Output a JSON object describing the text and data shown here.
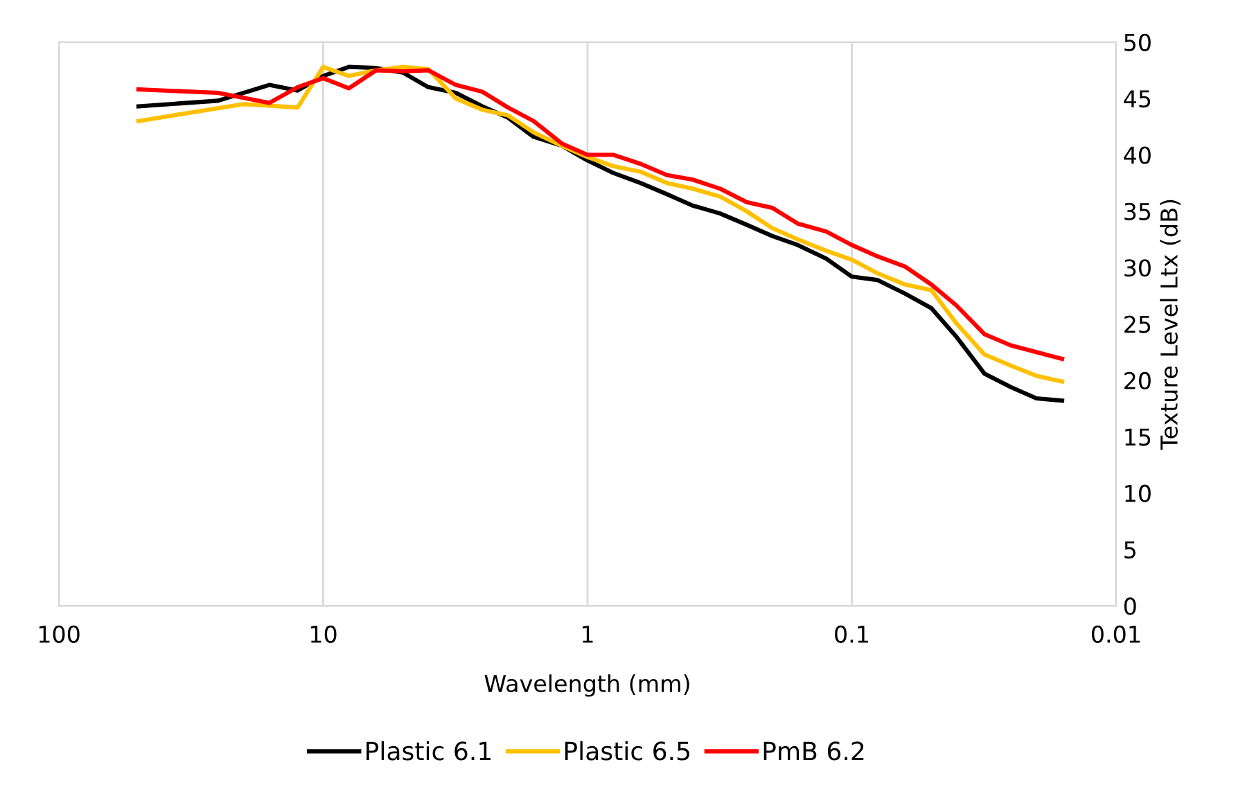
{
  "chart_data": {
    "type": "line",
    "xlabel": "Wavelength (mm)",
    "y2label": "Texture Level Ltx (dB)",
    "log": "x",
    "xlim": [
      100,
      0.01
    ],
    "xticks": [
      100,
      10,
      1,
      0.1,
      0.01
    ],
    "y2lim": [
      0,
      50
    ],
    "y2ticks": [
      0,
      5,
      10,
      15,
      20,
      25,
      30,
      35,
      40,
      45,
      50
    ],
    "grid": "x",
    "legend": "bottom",
    "marker": "none",
    "line_style": "solid",
    "series": [
      {
        "name": "Plastic 6.1",
        "color": "#000000",
        "axis": "y2",
        "x": [
          50,
          25,
          16,
          12.5,
          10,
          8,
          6.3,
          5,
          4,
          3.15,
          2.5,
          2,
          1.6,
          1.25,
          1,
          0.8,
          0.63,
          0.5,
          0.4,
          0.315,
          0.25,
          0.2,
          0.16,
          0.125,
          0.1,
          0.08,
          0.063,
          0.05,
          0.04,
          0.0315,
          0.025,
          0.02,
          0.016
        ],
        "values": [
          44.3,
          44.8,
          46.2,
          45.7,
          47,
          47.8,
          47.7,
          47.3,
          46,
          45.5,
          44.3,
          43.3,
          41.6,
          40.8,
          39.5,
          38.4,
          37.5,
          36.5,
          35.5,
          34.8,
          33.8,
          32.8,
          32,
          30.8,
          29.2,
          28.9,
          27.7,
          26.4,
          23.8,
          20.6,
          19.4,
          18.4,
          18.2
        ]
      },
      {
        "name": "Plastic 6.5",
        "color": "#ffc000",
        "axis": "y2",
        "x": [
          50,
          20,
          12.5,
          10,
          8,
          6.3,
          5,
          4,
          3.15,
          2.5,
          2,
          1.6,
          1.25,
          1,
          0.8,
          0.63,
          0.5,
          0.4,
          0.315,
          0.25,
          0.2,
          0.16,
          0.125,
          0.1,
          0.08,
          0.063,
          0.05,
          0.04,
          0.0315,
          0.025,
          0.02,
          0.016
        ],
        "values": [
          43,
          44.5,
          44.2,
          47.8,
          47,
          47.5,
          47.8,
          47.6,
          45,
          44,
          43.5,
          42,
          40.8,
          39.8,
          39,
          38.5,
          37.5,
          37,
          36.3,
          35,
          33.5,
          32.5,
          31.5,
          30.7,
          29.5,
          28.5,
          28,
          25,
          22.3,
          21.3,
          20.4,
          19.9
        ]
      },
      {
        "name": "PmB 6.2",
        "color": "#ff0000",
        "axis": "y2",
        "x": [
          50,
          25,
          16,
          12.5,
          10,
          8,
          6.3,
          5,
          4,
          3.15,
          2.5,
          2,
          1.6,
          1.25,
          1,
          0.8,
          0.63,
          0.5,
          0.4,
          0.315,
          0.25,
          0.2,
          0.16,
          0.125,
          0.1,
          0.08,
          0.063,
          0.05,
          0.04,
          0.0315,
          0.025,
          0.02,
          0.016
        ],
        "values": [
          45.8,
          45.5,
          44.6,
          46,
          46.8,
          45.9,
          47.5,
          47.4,
          47.5,
          46.2,
          45.6,
          44.2,
          43,
          41,
          40,
          40,
          39.2,
          38.2,
          37.8,
          37,
          35.8,
          35.3,
          33.9,
          33.2,
          32,
          31,
          30.1,
          28.5,
          26.6,
          24.1,
          23.1,
          22.5,
          21.9
        ]
      }
    ]
  }
}
